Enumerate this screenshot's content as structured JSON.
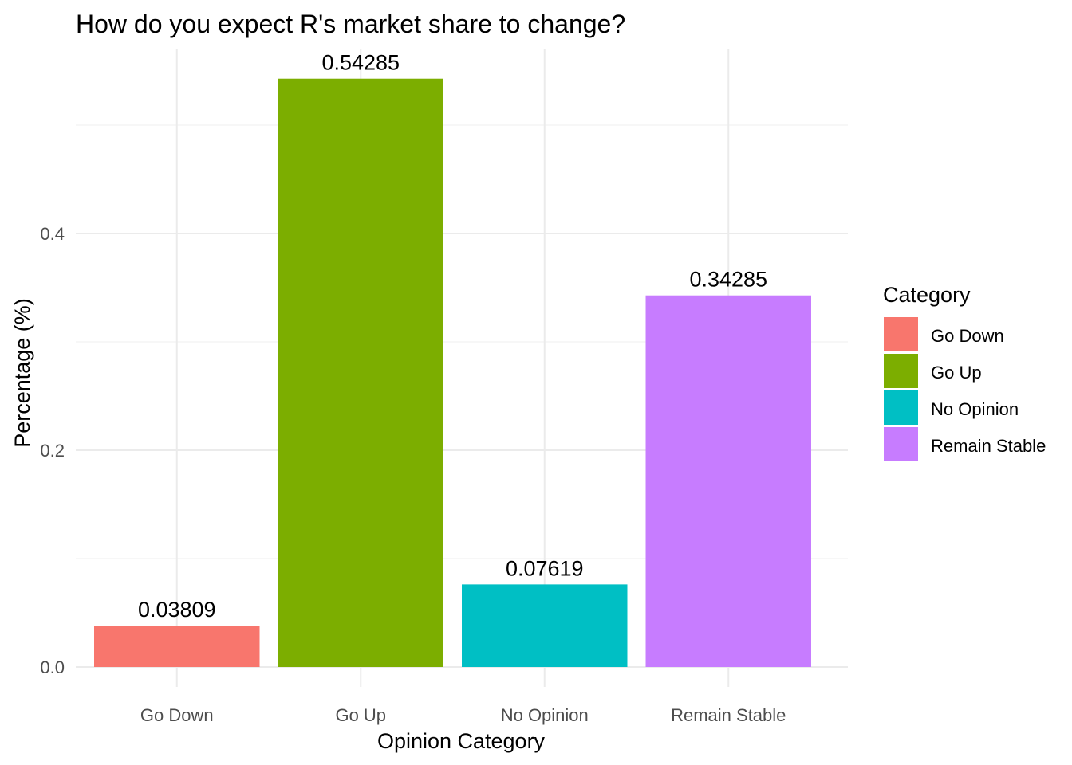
{
  "chart_data": {
    "type": "bar",
    "title": "How do you expect R's market share to change?",
    "xlabel": "Opinion Category",
    "ylabel": "Percentage (%)",
    "categories": [
      "Go Down",
      "Go Up",
      "No Opinion",
      "Remain Stable"
    ],
    "values": [
      0.03809,
      0.54285,
      0.07619,
      0.34285
    ],
    "value_labels": [
      "0.03809",
      "0.54285",
      "0.07619",
      "0.34285"
    ],
    "colors": [
      "#F8766D",
      "#7CAE00",
      "#00BFC4",
      "#C77CFF"
    ],
    "ylim": [
      0,
      0.57
    ],
    "yticks": [
      0.0,
      0.2,
      0.4
    ],
    "ytick_labels": [
      "0.0",
      "0.2",
      "0.4"
    ],
    "grid": true,
    "legend": {
      "title": "Category",
      "position": "right",
      "entries": [
        "Go Down",
        "Go Up",
        "No Opinion",
        "Remain Stable"
      ]
    }
  }
}
